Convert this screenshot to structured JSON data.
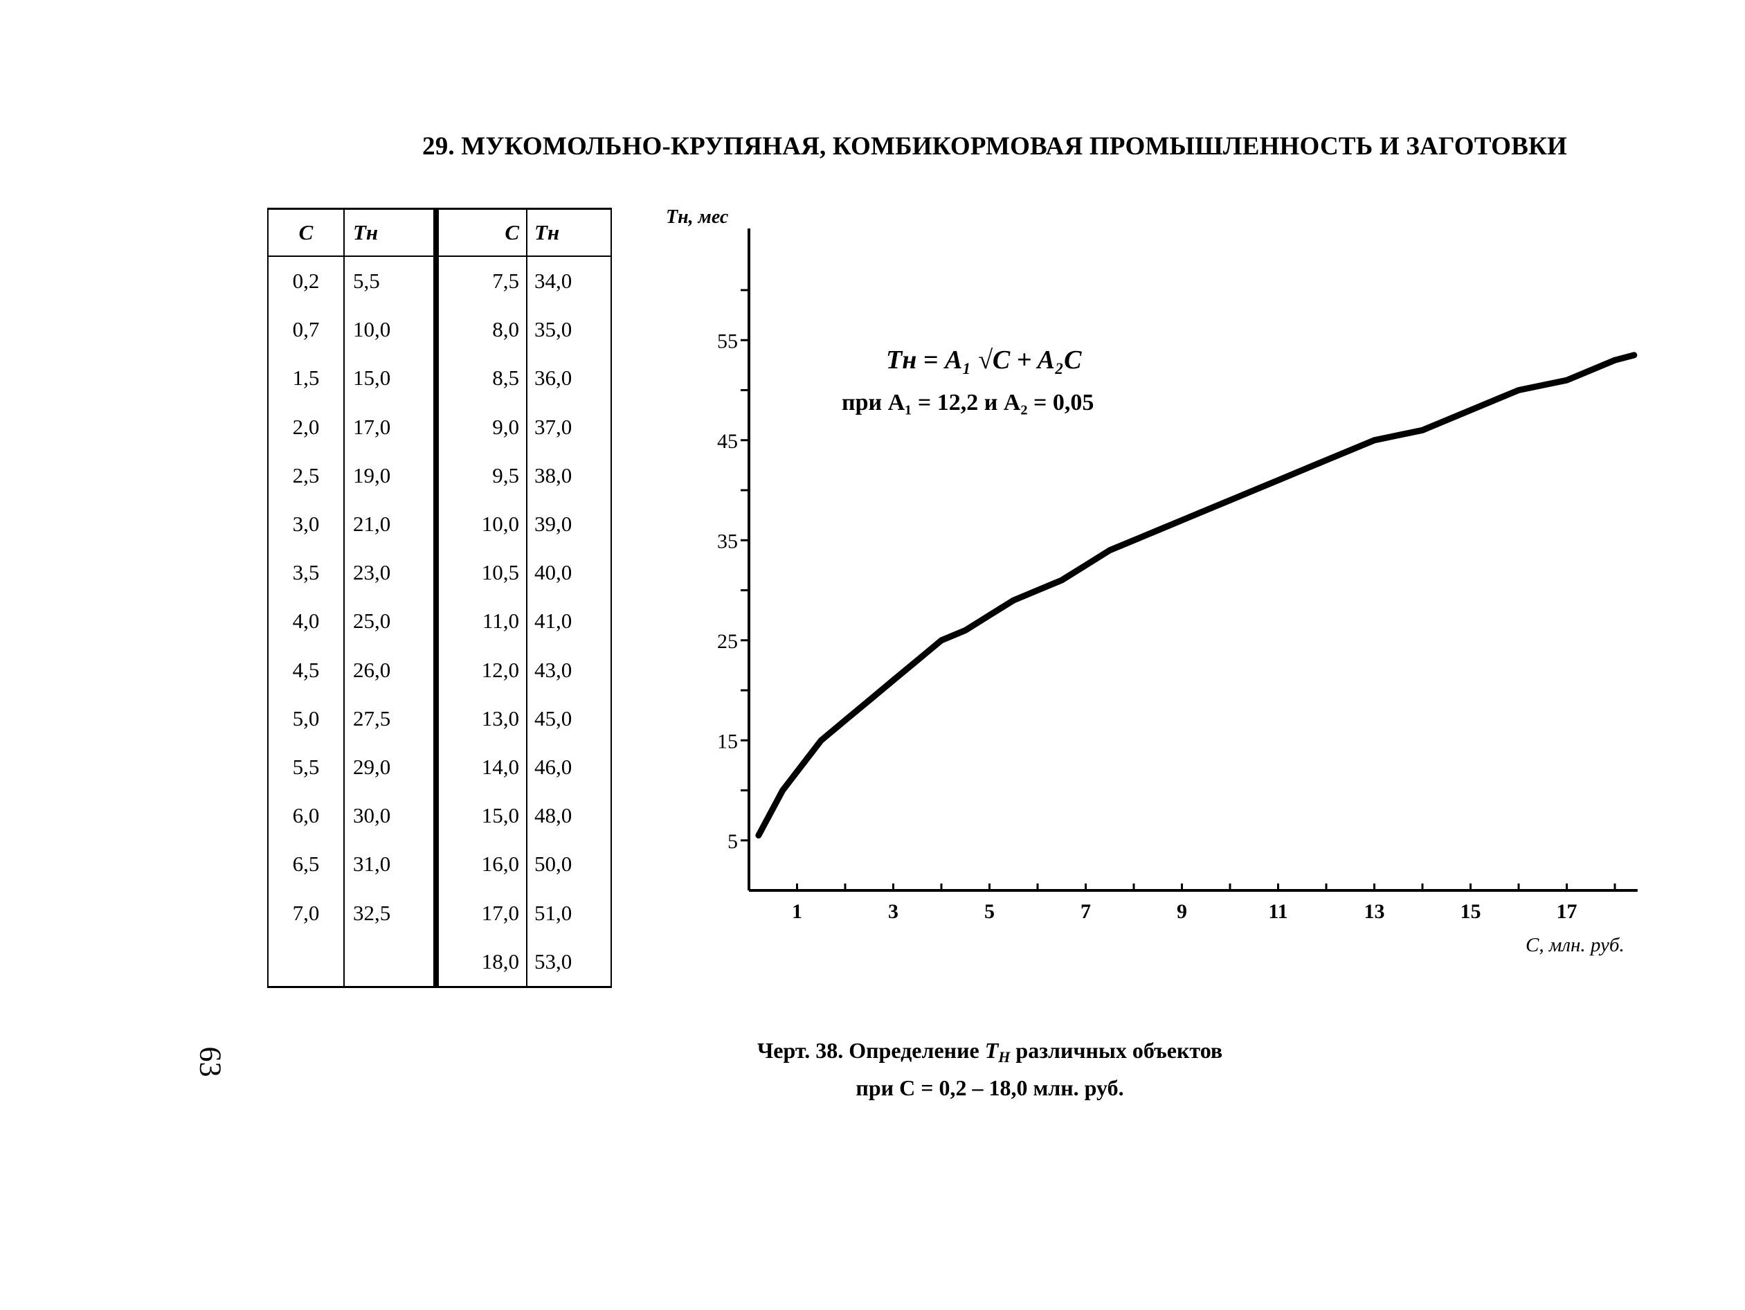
{
  "heading": "29. МУКОМОЛЬНО-КРУПЯНАЯ, КОМБИКОРМОВАЯ ПРОМЫШЛЕННОСТЬ И ЗАГОТОВКИ",
  "page_number": "63",
  "table": {
    "headers": [
      "C",
      "Тн",
      "C",
      "Тн"
    ],
    "left_c": [
      "0,2",
      "0,7",
      "1,5",
      "2,0",
      "2,5",
      "3,0",
      "3,5",
      "4,0",
      "4,5",
      "5,0",
      "5,5",
      "6,0",
      "6,5",
      "7,0",
      ""
    ],
    "left_t": [
      "5,5",
      "10,0",
      "15,0",
      "17,0",
      "19,0",
      "21,0",
      "23,0",
      "25,0",
      "26,0",
      "27,5",
      "29,0",
      "30,0",
      "31,0",
      "32,5",
      ""
    ],
    "right_c": [
      "7,5",
      "8,0",
      "8,5",
      "9,0",
      "9,5",
      "10,0",
      "10,5",
      "11,0",
      "12,0",
      "13,0",
      "14,0",
      "15,0",
      "16,0",
      "17,0",
      "18,0"
    ],
    "right_t": [
      "34,0",
      "35,0",
      "36,0",
      "37,0",
      "38,0",
      "39,0",
      "40,0",
      "41,0",
      "43,0",
      "45,0",
      "46,0",
      "48,0",
      "50,0",
      "51,0",
      "53,0"
    ]
  },
  "caption": {
    "line1_prefix": "Черт. 38. Определение",
    "line1_suffix": "различных объектов",
    "line2": "при  C = 0,2 – 18,0 млн. руб."
  },
  "chart_data": {
    "type": "line",
    "ylabel": "Тн, мес",
    "xlabel": "C, млн. руб.",
    "formula_line1": "Тн = A₁ √C + A₂C",
    "formula_line2": "при A₁ = 12,2 и A₂ = 0,05",
    "xlim": [
      0,
      18.4
    ],
    "ylim": [
      0,
      60
    ],
    "x_ticks": [
      "1",
      "3",
      "5",
      "7",
      "9",
      "11",
      "13",
      "15",
      "17"
    ],
    "y_ticks": [
      "5",
      "15",
      "25",
      "35",
      "45",
      "55"
    ],
    "grid": false,
    "series": [
      {
        "x": [
          0.2,
          0.7,
          1.5,
          2.0,
          2.5,
          3.0,
          3.5,
          4.0,
          4.5,
          5.0,
          5.5,
          6.0,
          6.5,
          7.0,
          7.5,
          8.0,
          8.5,
          9.0,
          9.5,
          10.0,
          10.5,
          11.0,
          12.0,
          13.0,
          14.0,
          15.0,
          16.0,
          17.0,
          18.0,
          18.4
        ],
        "y": [
          5.5,
          10.0,
          15.0,
          17.0,
          19.0,
          21.0,
          23.0,
          25.0,
          26.0,
          27.5,
          29.0,
          30.0,
          31.0,
          32.5,
          34.0,
          35.0,
          36.0,
          37.0,
          38.0,
          39.0,
          40.0,
          41.0,
          43.0,
          45.0,
          46.0,
          48.0,
          50.0,
          51.0,
          53.0,
          53.5
        ]
      }
    ]
  }
}
